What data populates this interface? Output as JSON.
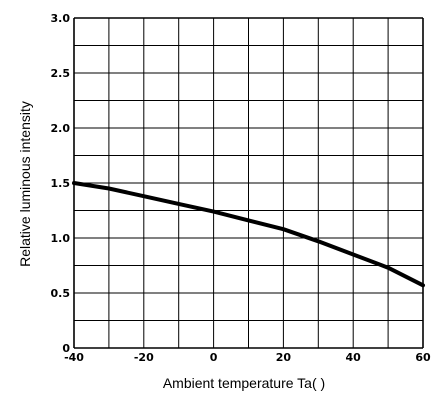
{
  "chart_data": {
    "type": "line",
    "title": "",
    "xlabel": "Ambient temperature Ta(   )",
    "ylabel": "Relative luminous intensity",
    "xlim": [
      -40,
      60
    ],
    "ylim": [
      0,
      3.0
    ],
    "grid": true,
    "x_ticks": [
      -40,
      -30,
      -20,
      -10,
      0,
      10,
      20,
      30,
      40,
      50,
      60
    ],
    "x_tick_labels": [
      "-40",
      "",
      "-20",
      "",
      "0",
      "",
      "20",
      "",
      "40",
      "",
      "60"
    ],
    "y_ticks": [
      0,
      0.5,
      1.0,
      1.5,
      2.0,
      2.5,
      3.0
    ],
    "y_tick_labels": [
      "0",
      "0.5",
      "1.0",
      "1.5",
      "2.0",
      "2.5",
      "3.0"
    ],
    "series": [
      {
        "color": "#000000",
        "x": [
          -40,
          -30,
          -20,
          -10,
          0,
          10,
          20,
          30,
          40,
          50,
          60
        ],
        "y": [
          1.5,
          1.45,
          1.38,
          1.31,
          1.24,
          1.16,
          1.08,
          0.97,
          0.85,
          0.73,
          0.57
        ]
      }
    ]
  }
}
